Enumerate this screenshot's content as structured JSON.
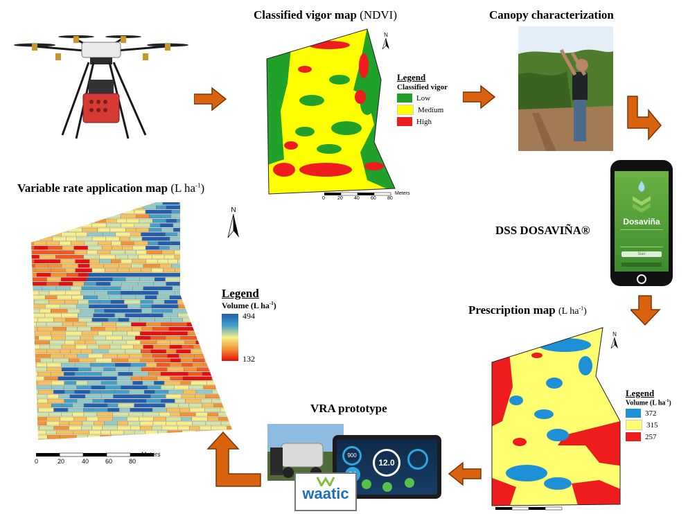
{
  "titles": {
    "vigor_map": "Classified vigor map",
    "vigor_map_unit": "(NDVI)",
    "canopy": "Canopy characterization",
    "dss": "DSS DOSAVIÑA®",
    "prescription": "Prescription map",
    "prescription_unit": "(L ha",
    "var_rate": "Variable rate application map",
    "var_rate_unit": "(L ha",
    "vra": "VRA prototype",
    "unit_exp": "-1",
    "unit_close": ")"
  },
  "vigor_legend": {
    "heading": "Legend",
    "subheading": "Classified vigor",
    "items": [
      {
        "label": "Low",
        "color": "#1fa12a"
      },
      {
        "label": "Medium",
        "color": "#ffff00"
      },
      {
        "label": "High",
        "color": "#ee1c1c"
      }
    ]
  },
  "vra_legend": {
    "heading": "Legend",
    "subheading": "Volume (L ha",
    "max": "494",
    "min": "132"
  },
  "prescription_legend": {
    "heading": "Legend",
    "subheading": "Volume (L ha",
    "items": [
      {
        "label": "372",
        "color": "#1e90d6"
      },
      {
        "label": "315",
        "color": "#ffff70"
      },
      {
        "label": "257",
        "color": "#ee1c1c"
      }
    ]
  },
  "scale_small": {
    "labels": [
      "0",
      "20",
      "40",
      "60",
      "80"
    ],
    "unit": "Meters"
  },
  "scale_large": {
    "labels": [
      "0",
      "20",
      "40",
      "60",
      "80"
    ],
    "unit": "Meters"
  },
  "north": "N",
  "app": {
    "name": "Dosaviña",
    "button": "Start",
    "tablet_center": "12.0",
    "tablet_left_top": "900",
    "tablet_left": "7.9",
    "brand": "waatic"
  },
  "colors": {
    "arrow": "#d9620f"
  }
}
